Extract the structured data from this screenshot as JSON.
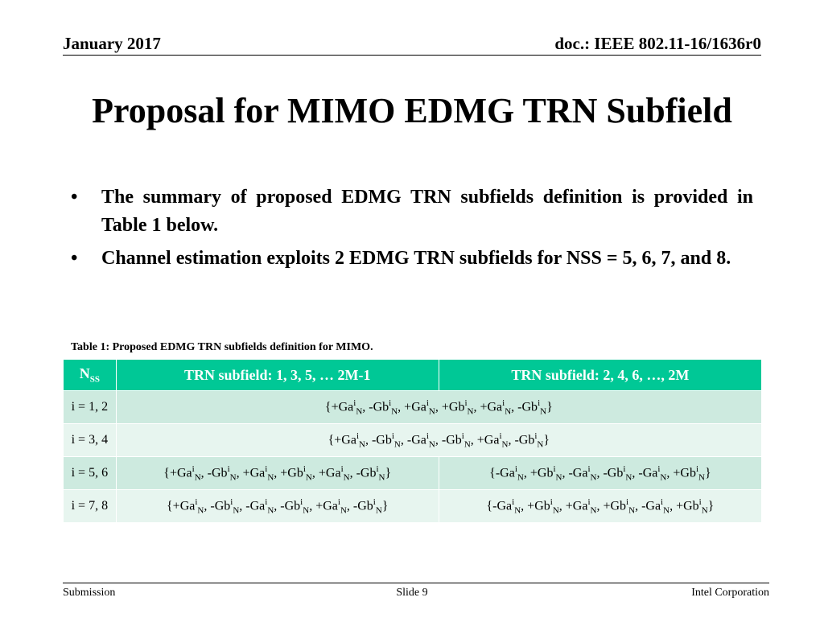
{
  "header": {
    "date": "January 2017",
    "doc": "doc.: IEEE 802.11-16/1636r0"
  },
  "title": "Proposal for MIMO EDMG TRN Subfield",
  "bullets": [
    "The summary of proposed EDMG TRN subfields definition is provided in Table 1 below.",
    "Channel estimation exploits 2 EDMG TRN subfields for NSS = 5, 6, 7, and 8."
  ],
  "table": {
    "caption": "Table 1: Proposed EDMG TRN subfields definition for MIMO.",
    "header": [
      [
        {
          "t": "N"
        },
        {
          "sub": "SS"
        }
      ],
      [
        {
          "t": "TRN subfield: 1, 3, 5, … 2M-1"
        }
      ],
      [
        {
          "t": "TRN subfield: 2, 4, 6, …, 2M"
        }
      ]
    ],
    "rows": [
      {
        "label": "i = 1, 2",
        "cells": [
          [
            {
              "t": "{+Ga"
            },
            {
              "sup": "i"
            },
            {
              "sub": "N"
            },
            {
              "t": ", -Gb"
            },
            {
              "sup": "i"
            },
            {
              "sub": "N"
            },
            {
              "t": ", +Ga"
            },
            {
              "sup": "i"
            },
            {
              "sub": "N"
            },
            {
              "t": ", +Gb"
            },
            {
              "sup": "i"
            },
            {
              "sub": "N"
            },
            {
              "t": ", +Ga"
            },
            {
              "sup": "i"
            },
            {
              "sub": "N"
            },
            {
              "t": ", -Gb"
            },
            {
              "sup": "i"
            },
            {
              "sub": "N"
            },
            {
              "t": "}"
            }
          ]
        ]
      },
      {
        "label": "i = 3, 4",
        "cells": [
          [
            {
              "t": "{+Ga"
            },
            {
              "sup": "i"
            },
            {
              "sub": "N"
            },
            {
              "t": ", -Gb"
            },
            {
              "sup": "i"
            },
            {
              "sub": "N"
            },
            {
              "t": ", -Ga"
            },
            {
              "sup": "i"
            },
            {
              "sub": "N"
            },
            {
              "t": ", -Gb"
            },
            {
              "sup": "i"
            },
            {
              "sub": "N"
            },
            {
              "t": ", +Ga"
            },
            {
              "sup": "i"
            },
            {
              "sub": "N"
            },
            {
              "t": ", -Gb"
            },
            {
              "sup": "i"
            },
            {
              "sub": "N"
            },
            {
              "t": "}"
            }
          ]
        ]
      },
      {
        "label": "i = 5, 6",
        "cells": [
          [
            {
              "t": "{+Ga"
            },
            {
              "sup": "i"
            },
            {
              "sub": "N"
            },
            {
              "t": ", -Gb"
            },
            {
              "sup": "i"
            },
            {
              "sub": "N"
            },
            {
              "t": ", +Ga"
            },
            {
              "sup": "i"
            },
            {
              "sub": "N"
            },
            {
              "t": ", +Gb"
            },
            {
              "sup": "i"
            },
            {
              "sub": "N"
            },
            {
              "t": ", +Ga"
            },
            {
              "sup": "i"
            },
            {
              "sub": "N"
            },
            {
              "t": ", -Gb"
            },
            {
              "sup": "i"
            },
            {
              "sub": "N"
            },
            {
              "t": "}"
            }
          ],
          [
            {
              "t": "{-Ga"
            },
            {
              "sup": "i"
            },
            {
              "sub": "N"
            },
            {
              "t": ", +Gb"
            },
            {
              "sup": "i"
            },
            {
              "sub": "N"
            },
            {
              "t": ", -Ga"
            },
            {
              "sup": "i"
            },
            {
              "sub": "N"
            },
            {
              "t": ", -Gb"
            },
            {
              "sup": "i"
            },
            {
              "sub": "N"
            },
            {
              "t": ", -Ga"
            },
            {
              "sup": "i"
            },
            {
              "sub": "N"
            },
            {
              "t": ", +Gb"
            },
            {
              "sup": "i"
            },
            {
              "sub": "N"
            },
            {
              "t": "}"
            }
          ]
        ]
      },
      {
        "label": "i = 7, 8",
        "cells": [
          [
            {
              "t": "{+Ga"
            },
            {
              "sup": "i"
            },
            {
              "sub": "N"
            },
            {
              "t": ", -Gb"
            },
            {
              "sup": "i"
            },
            {
              "sub": "N"
            },
            {
              "t": ", -Ga"
            },
            {
              "sup": "i"
            },
            {
              "sub": "N"
            },
            {
              "t": ", -Gb"
            },
            {
              "sup": "i"
            },
            {
              "sub": "N"
            },
            {
              "t": ", +Ga"
            },
            {
              "sup": "i"
            },
            {
              "sub": "N"
            },
            {
              "t": ", -Gb"
            },
            {
              "sup": "i"
            },
            {
              "sub": "N"
            },
            {
              "t": "}"
            }
          ],
          [
            {
              "t": "{-Ga"
            },
            {
              "sup": "i"
            },
            {
              "sub": "N"
            },
            {
              "t": ", +Gb"
            },
            {
              "sup": "i"
            },
            {
              "sub": "N"
            },
            {
              "t": ", +Ga"
            },
            {
              "sup": "i"
            },
            {
              "sub": "N"
            },
            {
              "t": ", +Gb"
            },
            {
              "sup": "i"
            },
            {
              "sub": "N"
            },
            {
              "t": ", -Ga"
            },
            {
              "sup": "i"
            },
            {
              "sub": "N"
            },
            {
              "t": ", +Gb"
            },
            {
              "sup": "i"
            },
            {
              "sub": "N"
            },
            {
              "t": "}"
            }
          ]
        ]
      }
    ]
  },
  "footer": {
    "left": "Submission",
    "center": "Slide 9",
    "right": "Intel Corporation"
  }
}
